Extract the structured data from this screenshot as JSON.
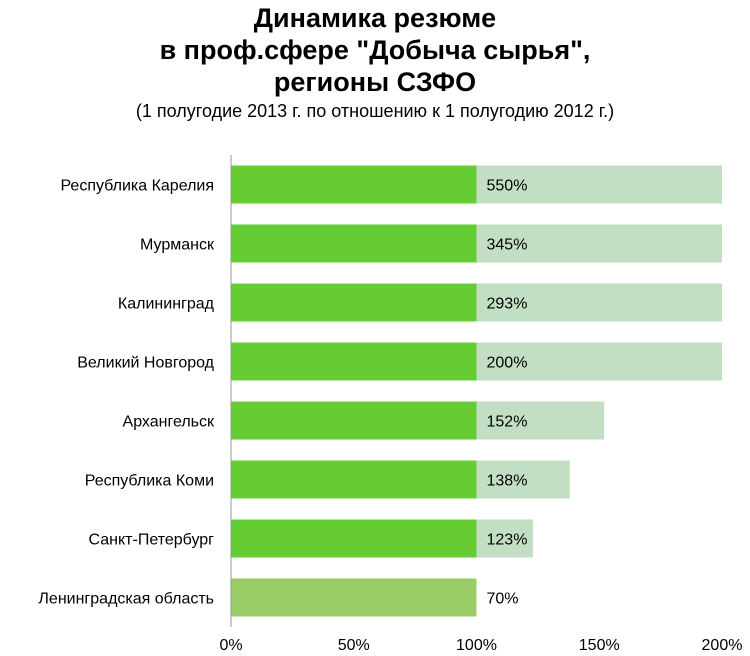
{
  "chart_data": {
    "type": "bar",
    "orientation": "horizontal",
    "title_lines": [
      "Динамика резюме",
      "в проф.сфере \"Добыча сырья\",",
      "регионы СЗФО"
    ],
    "subtitle": "(1 полугодие 2013 г. по отношению к 1 полугодию 2012 г.)",
    "categories": [
      "Республика Карелия",
      "Мурманск",
      "Калининград",
      "Великий Новгород",
      "Архангельск",
      "Республика Коми",
      "Санкт-Петербург",
      "Ленинградская область"
    ],
    "values": [
      550,
      345,
      293,
      200,
      152,
      138,
      123,
      70
    ],
    "data_labels": [
      "550%",
      "345%",
      "293%",
      "200%",
      "152%",
      "138%",
      "123%",
      "70%"
    ],
    "x_ticks": [
      "0%",
      "50%",
      "100%",
      "150%",
      "200%"
    ],
    "xlim": [
      0,
      200
    ],
    "grid": false,
    "colors": {
      "main_bar": "#66cc33",
      "main_bar_last": "#99cc66",
      "background_bar": "#c3dfc3",
      "axis": "#999999"
    }
  }
}
